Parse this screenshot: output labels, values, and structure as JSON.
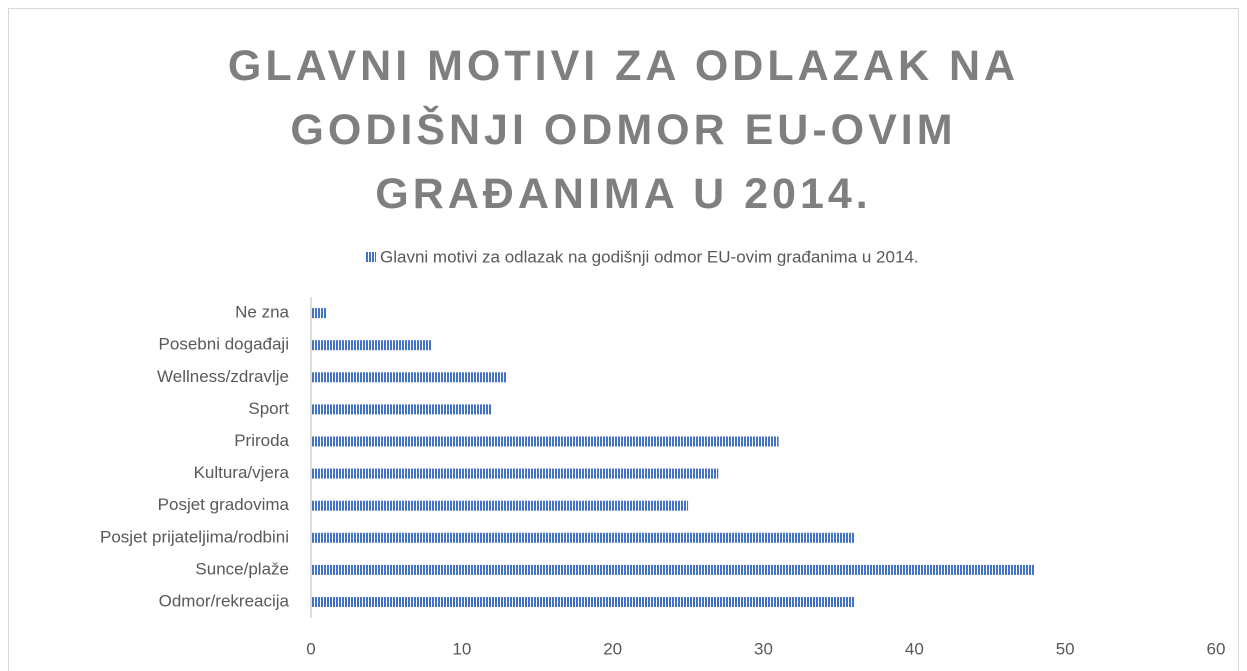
{
  "chart_data": {
    "type": "barh",
    "title": "GLAVNI MOTIVI ZA ODLAZAK NA GODIŠNJI ODMOR EU-OVIM GRAĐANIMA U 2014.",
    "categories": [
      "Odmor/rekreacija",
      "Sunce/plaže",
      "Posjet prijateljima/rodbini",
      "Posjet gradovima",
      "Kultura/vjera",
      "Priroda",
      "Sport",
      "Wellness/zdravlje",
      "Posebni događaji",
      "Ne zna"
    ],
    "series": [
      {
        "name": "Glavni motivi za odlazak na godišnji odmor EU-ovim građanima u 2014.",
        "color": "#4472c4",
        "values": [
          36,
          48,
          36,
          25,
          27,
          31,
          12,
          13,
          8,
          1
        ]
      }
    ],
    "xlim": [
      0,
      60
    ],
    "xticks": [
      0,
      10,
      20,
      30,
      40,
      50,
      60
    ],
    "legend": "top",
    "grid": false
  }
}
